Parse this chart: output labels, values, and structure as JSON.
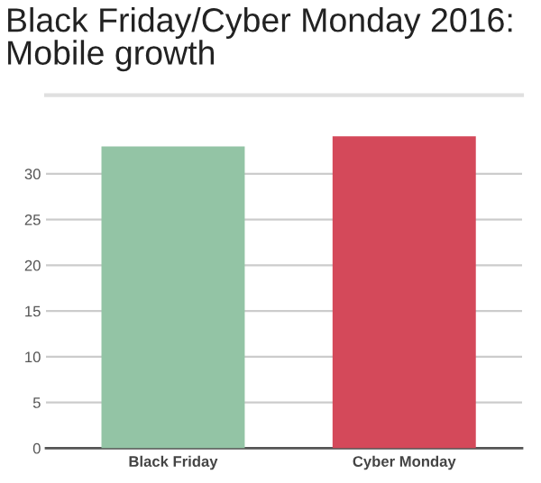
{
  "chart_data": {
    "type": "bar",
    "title": "Black Friday/Cyber Monday 2016:\nMobile growth",
    "categories": [
      "Black Friday",
      "Cyber Monday"
    ],
    "values": [
      33.0,
      34.1
    ],
    "colors": [
      "#93c4a5",
      "#d4495a"
    ],
    "ylim": [
      0,
      38.6
    ],
    "yticks": [
      0,
      5,
      10,
      15,
      20,
      25,
      30
    ],
    "grid": "y",
    "legend": false
  }
}
